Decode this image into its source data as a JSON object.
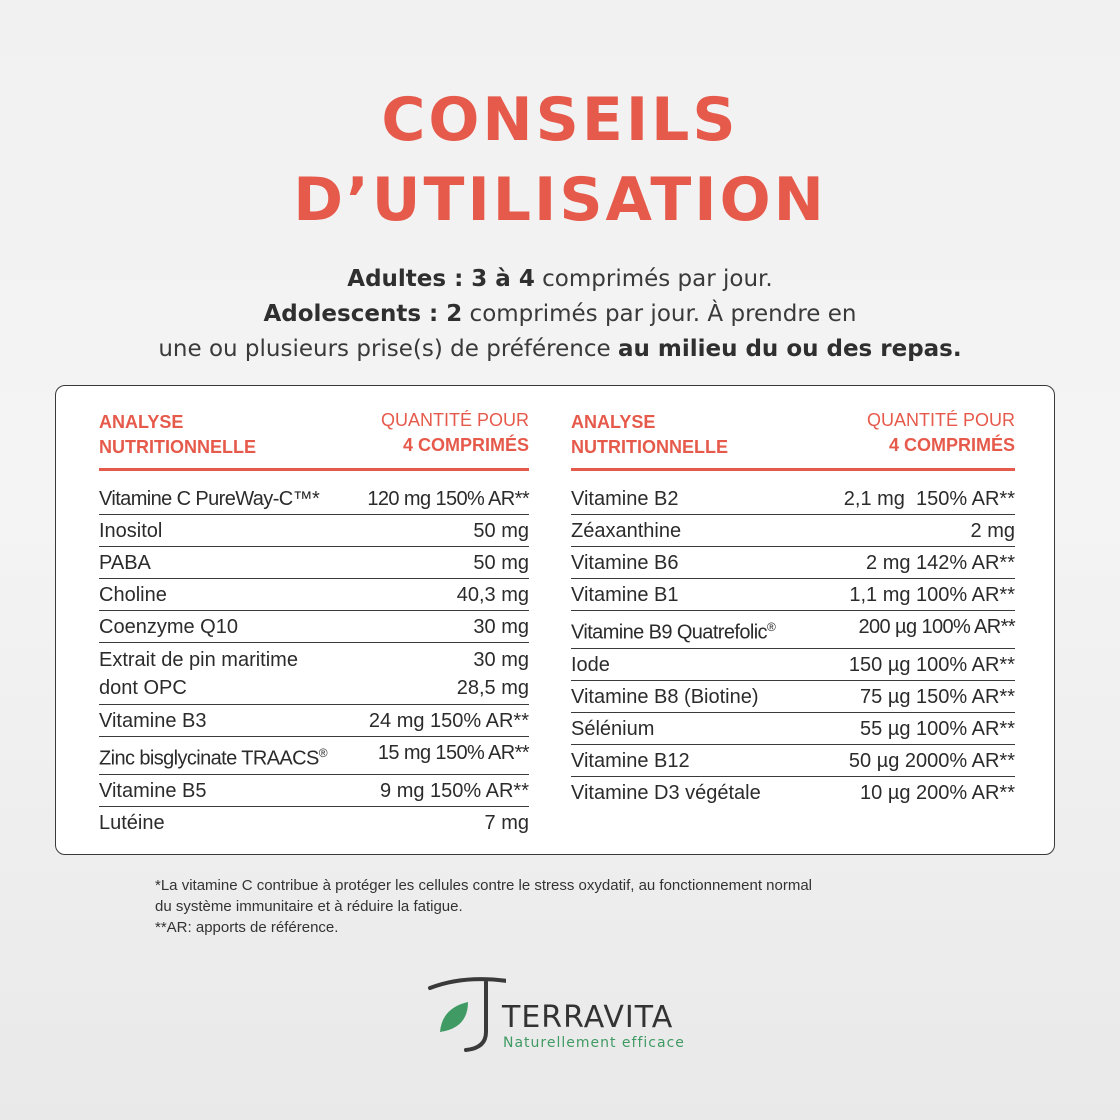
{
  "title": {
    "line1": "CONSEILS",
    "line2": "D’UTILISATION"
  },
  "intro": {
    "adultes_label": "Adultes : 3 à 4",
    "adultes_text": " comprimés par jour.",
    "ados_label": "Adolescents : 2",
    "ados_text": " comprimés par jour. À prendre en",
    "line3_text": "une ou plusieurs prise(s) de préférence ",
    "line3_bold": "au milieu du ou des repas."
  },
  "table": {
    "header_left_1": "ANALYSE",
    "header_left_2": "NUTRITIONNELLE",
    "header_right_1": "QUANTITÉ POUR",
    "header_right_2": "4 COMPRIMÉS",
    "left_rows": [
      {
        "name": "Vitamine C PureWay-C™*",
        "value": "120 mg 150% AR**"
      },
      {
        "name": "Inositol",
        "value": "50 mg"
      },
      {
        "name": "PABA",
        "value": "50 mg"
      },
      {
        "name": "Choline",
        "value": "40,3 mg"
      },
      {
        "name": "Coenzyme Q10",
        "value": "30 mg"
      },
      {
        "name": "Extrait de pin maritime",
        "name2": "dont OPC",
        "value": "30 mg",
        "value2": "28,5 mg"
      },
      {
        "name": "Vitamine B3",
        "value": "24 mg 150% AR**"
      },
      {
        "name": "Zinc bisglycinate TRAACS",
        "sup": "®",
        "value": "15 mg 150% AR**"
      },
      {
        "name": "Vitamine B5",
        "value": "9 mg 150% AR**"
      },
      {
        "name": "Lutéine",
        "value": "7 mg"
      }
    ],
    "right_rows": [
      {
        "name": "Vitamine B2",
        "value": "2,1 mg  150% AR**"
      },
      {
        "name": "Zéaxanthine",
        "value": "2 mg"
      },
      {
        "name": "Vitamine B6",
        "value": "2 mg 142% AR**"
      },
      {
        "name": "Vitamine B1",
        "value": "1,1 mg 100% AR**"
      },
      {
        "name": "Vitamine B9 Quatrefolic",
        "sup": "®",
        "value": "200 µg 100% AR**"
      },
      {
        "name": "Iode",
        "value": "150 µg 100% AR**"
      },
      {
        "name": "Vitamine B8 (Biotine)",
        "value": "75 µg 150% AR**"
      },
      {
        "name": "Sélénium",
        "value": "55 µg 100% AR**"
      },
      {
        "name": "Vitamine B12",
        "value": "50 µg 2000% AR**"
      },
      {
        "name": "Vitamine D3 végétale",
        "value": "10 µg 200% AR**"
      }
    ]
  },
  "footnotes": {
    "line1": "*La vitamine C contribue à protéger les cellules contre le stress oxydatif, au fonctionnement normal",
    "line2": "du système immunitaire et à réduire la fatigue.",
    "line3": "**AR: apports de référence."
  },
  "brand": {
    "name": "TERRAVITA",
    "tagline": "Naturellement efficace",
    "icon": "t-leaf-logo-icon",
    "colors": {
      "dark": "#3a3a3a",
      "green": "#3f9a63"
    }
  },
  "colors": {
    "accent": "#e65a4b",
    "text": "#2b2b2b"
  }
}
